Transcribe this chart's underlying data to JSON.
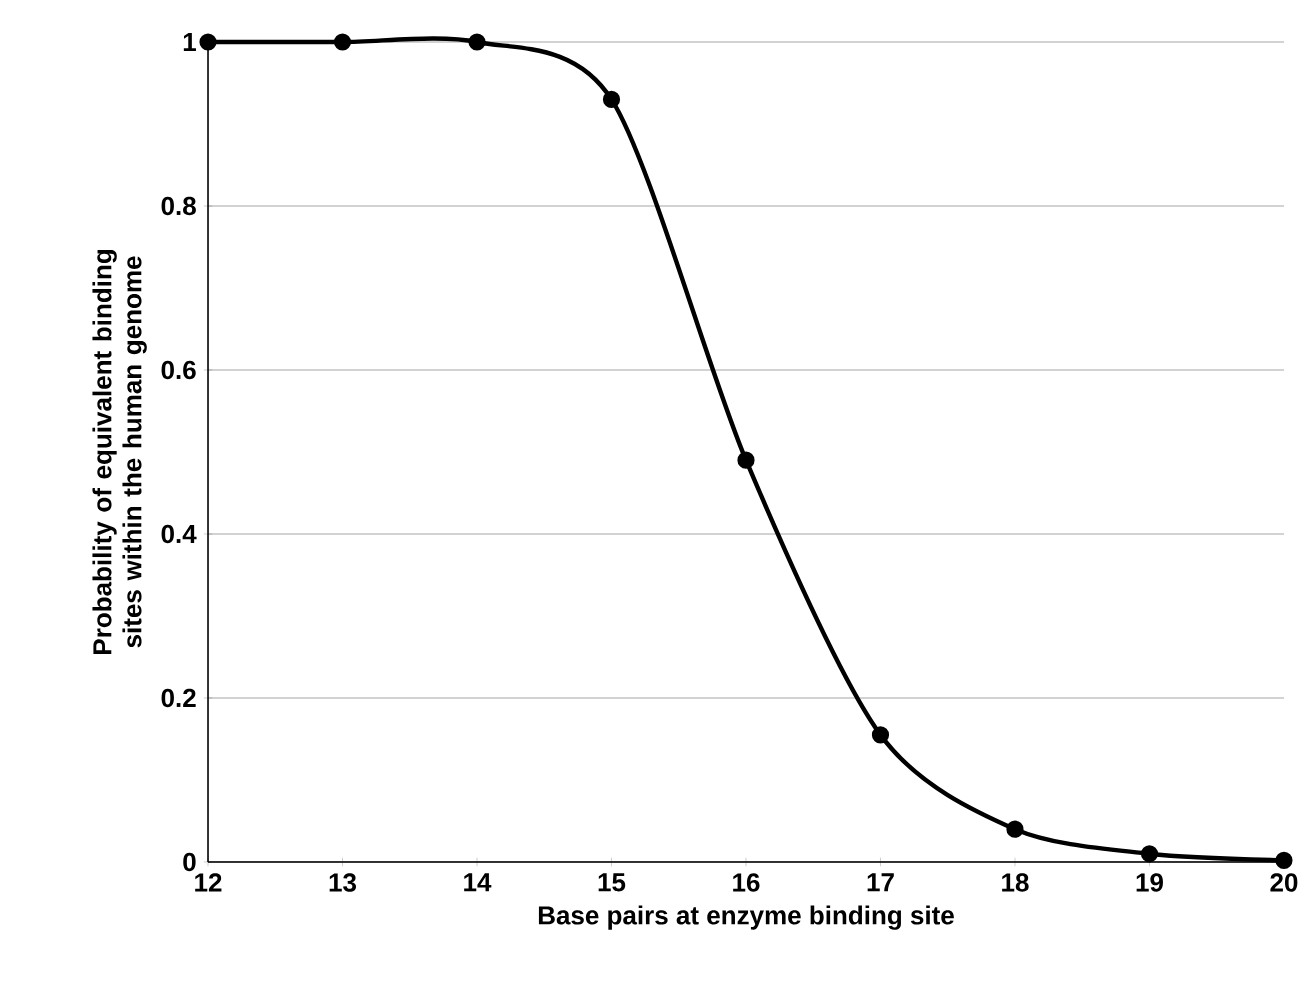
{
  "chart_data": {
    "type": "line",
    "xlabel": "Base pairs at enzyme binding site",
    "ylabel": "Probability of equivalent binding sites within the human genome",
    "x": [
      12,
      13,
      14,
      15,
      16,
      17,
      18,
      19,
      20
    ],
    "series": [
      {
        "color": "#000000",
        "values": [
          1,
          1,
          1,
          0.93,
          0.49,
          0.155,
          0.04,
          0.01,
          0.002
        ]
      }
    ],
    "xlim": [
      12,
      20
    ],
    "xticks": [
      12,
      13,
      14,
      15,
      16,
      17,
      18,
      19,
      20
    ],
    "ylim": [
      0,
      1
    ],
    "yticks": [
      0,
      0.2,
      0.4,
      0.6,
      0.8,
      1
    ],
    "grid": "y",
    "marker": "circle",
    "line_style": "solid"
  }
}
